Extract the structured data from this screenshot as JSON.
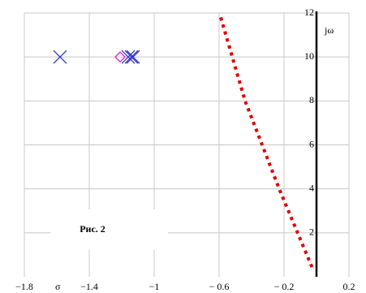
{
  "chart_data": {
    "type": "scatter",
    "x_label": "σ",
    "y_label": "jω",
    "annotation": "Рис. 2",
    "xlim": [
      -1.8,
      0.2
    ],
    "ylim": [
      0,
      12
    ],
    "xticks": [
      {
        "value": -1.8,
        "label": "−1.8"
      },
      {
        "value": -1.4,
        "label": "−1.4"
      },
      {
        "value": -1,
        "label": "−1"
      },
      {
        "value": -0.6,
        "label": "− 0.6"
      },
      {
        "value": -0.2,
        "label": "− 0.2"
      },
      0.2
    ],
    "yticks": [
      2,
      4,
      6,
      8,
      10,
      12
    ],
    "grid": true,
    "series": [
      {
        "color": "#3333cc",
        "marker": "cross",
        "x": [
          -1.58,
          -1.16,
          -1.14,
          -1.13
        ],
        "values": [
          10,
          10,
          10,
          10
        ]
      },
      {
        "color": "#e020e0",
        "marker": "diamond",
        "x": [
          -1.21
        ],
        "values": [
          10
        ]
      },
      {
        "color": "#e00000",
        "marker": "dotted-line",
        "x": [
          -0.59,
          -0.44,
          -0.23,
          -0.02
        ],
        "values": [
          11.8,
          8,
          4,
          0.3
        ]
      }
    ]
  }
}
